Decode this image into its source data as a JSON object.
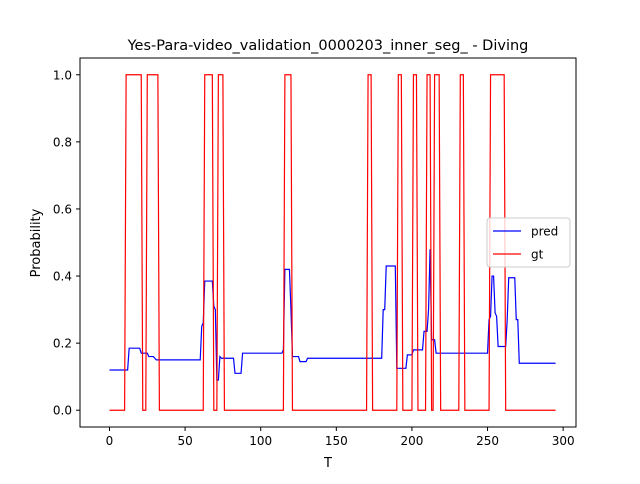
{
  "chart_data": {
    "type": "line",
    "title": "Yes-Para-video_validation_0000203_inner_seg_ - Diving",
    "xlabel": "T",
    "ylabel": "Probability",
    "xlim": [
      -19.5,
      308.5
    ],
    "ylim": [
      -0.05,
      1.05
    ],
    "xticks": [
      0,
      50,
      100,
      150,
      200,
      250,
      300
    ],
    "yticks": [
      0.0,
      0.2,
      0.4,
      0.6,
      0.8,
      1.0
    ],
    "xtick_labels": [
      "0",
      "50",
      "100",
      "150",
      "200",
      "250",
      "300"
    ],
    "ytick_labels": [
      "0.0",
      "0.2",
      "0.4",
      "0.6",
      "0.8",
      "1.0"
    ],
    "legend_position": "center-right",
    "grid": false,
    "series": [
      {
        "name": "pred",
        "color": "#0000ff",
        "points": [
          [
            0,
            0.12
          ],
          [
            12,
            0.12
          ],
          [
            13,
            0.185
          ],
          [
            20,
            0.185
          ],
          [
            21,
            0.17
          ],
          [
            25,
            0.17
          ],
          [
            26,
            0.16
          ],
          [
            29,
            0.16
          ],
          [
            31,
            0.15
          ],
          [
            60,
            0.15
          ],
          [
            61,
            0.25
          ],
          [
            62,
            0.26
          ],
          [
            63,
            0.385
          ],
          [
            68,
            0.385
          ],
          [
            69,
            0.31
          ],
          [
            70,
            0.3
          ],
          [
            71,
            0.09
          ],
          [
            72,
            0.09
          ],
          [
            73,
            0.16
          ],
          [
            74,
            0.155
          ],
          [
            82,
            0.155
          ],
          [
            83,
            0.11
          ],
          [
            87,
            0.11
          ],
          [
            88,
            0.17
          ],
          [
            114,
            0.17
          ],
          [
            115,
            0.18
          ],
          [
            116,
            0.42
          ],
          [
            119,
            0.42
          ],
          [
            120,
            0.3
          ],
          [
            121,
            0.16
          ],
          [
            125,
            0.16
          ],
          [
            126,
            0.145
          ],
          [
            130,
            0.145
          ],
          [
            131,
            0.155
          ],
          [
            180,
            0.155
          ],
          [
            181,
            0.3
          ],
          [
            182,
            0.3
          ],
          [
            183,
            0.43
          ],
          [
            189,
            0.43
          ],
          [
            190,
            0.125
          ],
          [
            196,
            0.125
          ],
          [
            197,
            0.165
          ],
          [
            200,
            0.165
          ],
          [
            201,
            0.18
          ],
          [
            207,
            0.18
          ],
          [
            208,
            0.235
          ],
          [
            210,
            0.235
          ],
          [
            211,
            0.3
          ],
          [
            212,
            0.48
          ],
          [
            213,
            0.21
          ],
          [
            215,
            0.21
          ],
          [
            216,
            0.17
          ],
          [
            250,
            0.17
          ],
          [
            251,
            0.27
          ],
          [
            252,
            0.28
          ],
          [
            253,
            0.4
          ],
          [
            254,
            0.4
          ],
          [
            255,
            0.29
          ],
          [
            256,
            0.28
          ],
          [
            257,
            0.19
          ],
          [
            262,
            0.19
          ],
          [
            263,
            0.27
          ],
          [
            264,
            0.395
          ],
          [
            268,
            0.395
          ],
          [
            269,
            0.27
          ],
          [
            270,
            0.27
          ],
          [
            271,
            0.14
          ],
          [
            295,
            0.14
          ]
        ]
      },
      {
        "name": "gt",
        "color": "#ff0000",
        "points": [
          [
            0,
            0
          ],
          [
            10,
            0
          ],
          [
            11,
            1
          ],
          [
            21,
            1
          ],
          [
            22,
            0
          ],
          [
            24,
            0
          ],
          [
            25,
            1
          ],
          [
            32,
            1
          ],
          [
            33,
            0
          ],
          [
            62,
            0
          ],
          [
            63,
            1
          ],
          [
            68,
            1
          ],
          [
            69,
            0
          ],
          [
            71,
            0
          ],
          [
            72,
            1
          ],
          [
            75,
            1
          ],
          [
            76,
            0
          ],
          [
            115,
            0
          ],
          [
            116,
            1
          ],
          [
            120,
            1
          ],
          [
            121,
            0
          ],
          [
            170,
            0
          ],
          [
            171,
            1
          ],
          [
            173,
            1
          ],
          [
            174,
            0
          ],
          [
            190,
            0
          ],
          [
            191,
            1
          ],
          [
            193,
            1
          ],
          [
            194,
            0
          ],
          [
            200,
            0
          ],
          [
            201,
            1
          ],
          [
            203,
            1
          ],
          [
            204,
            0
          ],
          [
            209,
            0
          ],
          [
            210,
            1
          ],
          [
            212,
            1
          ],
          [
            213,
            0
          ],
          [
            214,
            0
          ],
          [
            215,
            1
          ],
          [
            218,
            1
          ],
          [
            219,
            0
          ],
          [
            231,
            0
          ],
          [
            232,
            1
          ],
          [
            234,
            1
          ],
          [
            235,
            0
          ],
          [
            251,
            0
          ],
          [
            252,
            1
          ],
          [
            261,
            1
          ],
          [
            262,
            0
          ],
          [
            295,
            0
          ]
        ]
      }
    ]
  }
}
